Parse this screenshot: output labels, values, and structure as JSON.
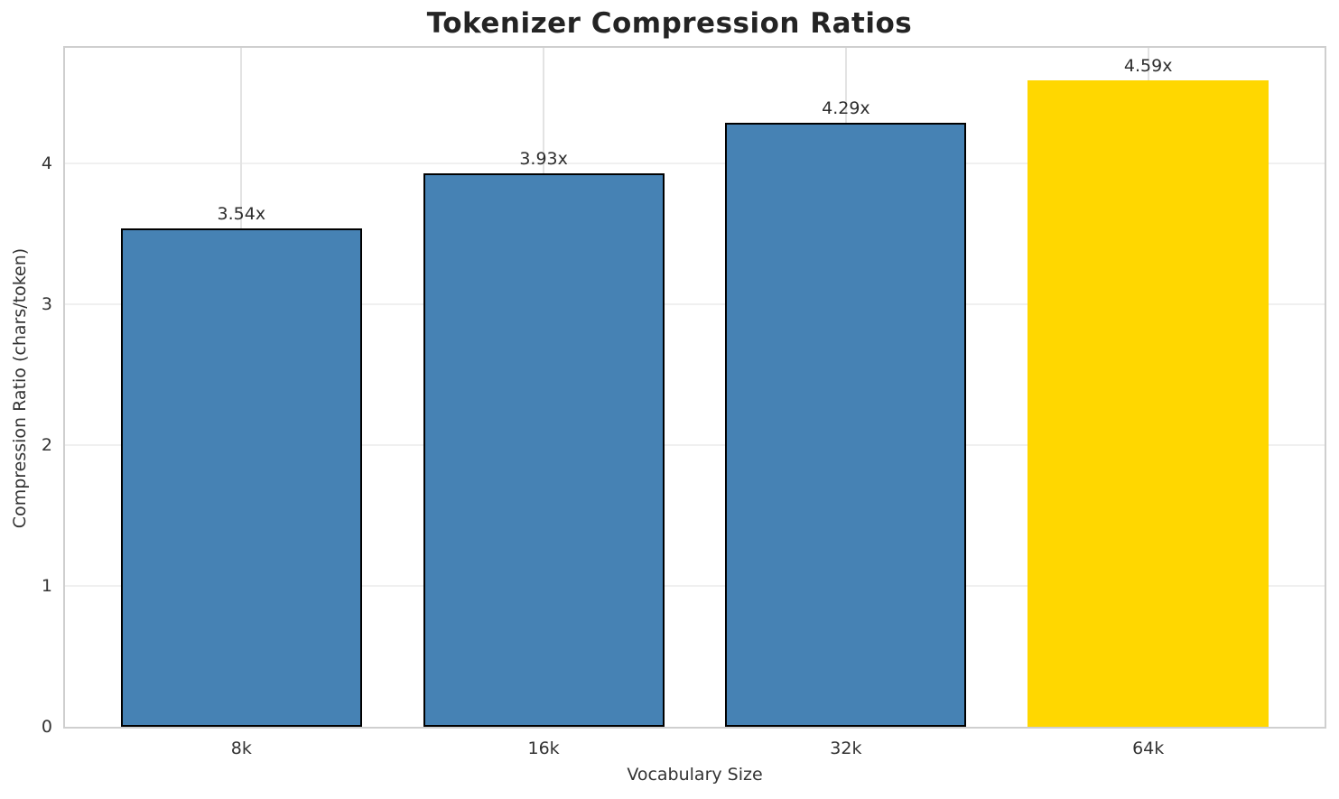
{
  "chart_data": {
    "type": "bar",
    "title": "Tokenizer Compression Ratios",
    "xlabel": "Vocabulary Size",
    "ylabel": "Compression Ratio (chars/token)",
    "categories": [
      "8k",
      "16k",
      "32k",
      "64k"
    ],
    "values": [
      3.54,
      3.93,
      4.29,
      4.59
    ],
    "value_labels": [
      "3.54x",
      "3.93x",
      "4.29x",
      "4.59x"
    ],
    "yticks": [
      0,
      1,
      2,
      3,
      4
    ],
    "ylim": [
      0,
      4.82
    ],
    "grid": true,
    "legend": "none",
    "bar_colors": [
      "#4682B4",
      "#4682B4",
      "#4682B4",
      "#FFD700"
    ],
    "bar_edge_colors": [
      "#000000",
      "#000000",
      "#000000",
      "none"
    ],
    "highlight_index": 3,
    "colors": {
      "bar_default": "#4682B4",
      "bar_highlight": "#FFD700",
      "bar_edge": "#000000",
      "spine": "#cfcfcf",
      "grid_h": "#f0f0f0",
      "grid_v": "#e3e3e3",
      "title_text": "#242424",
      "tick_text": "#333333"
    }
  }
}
